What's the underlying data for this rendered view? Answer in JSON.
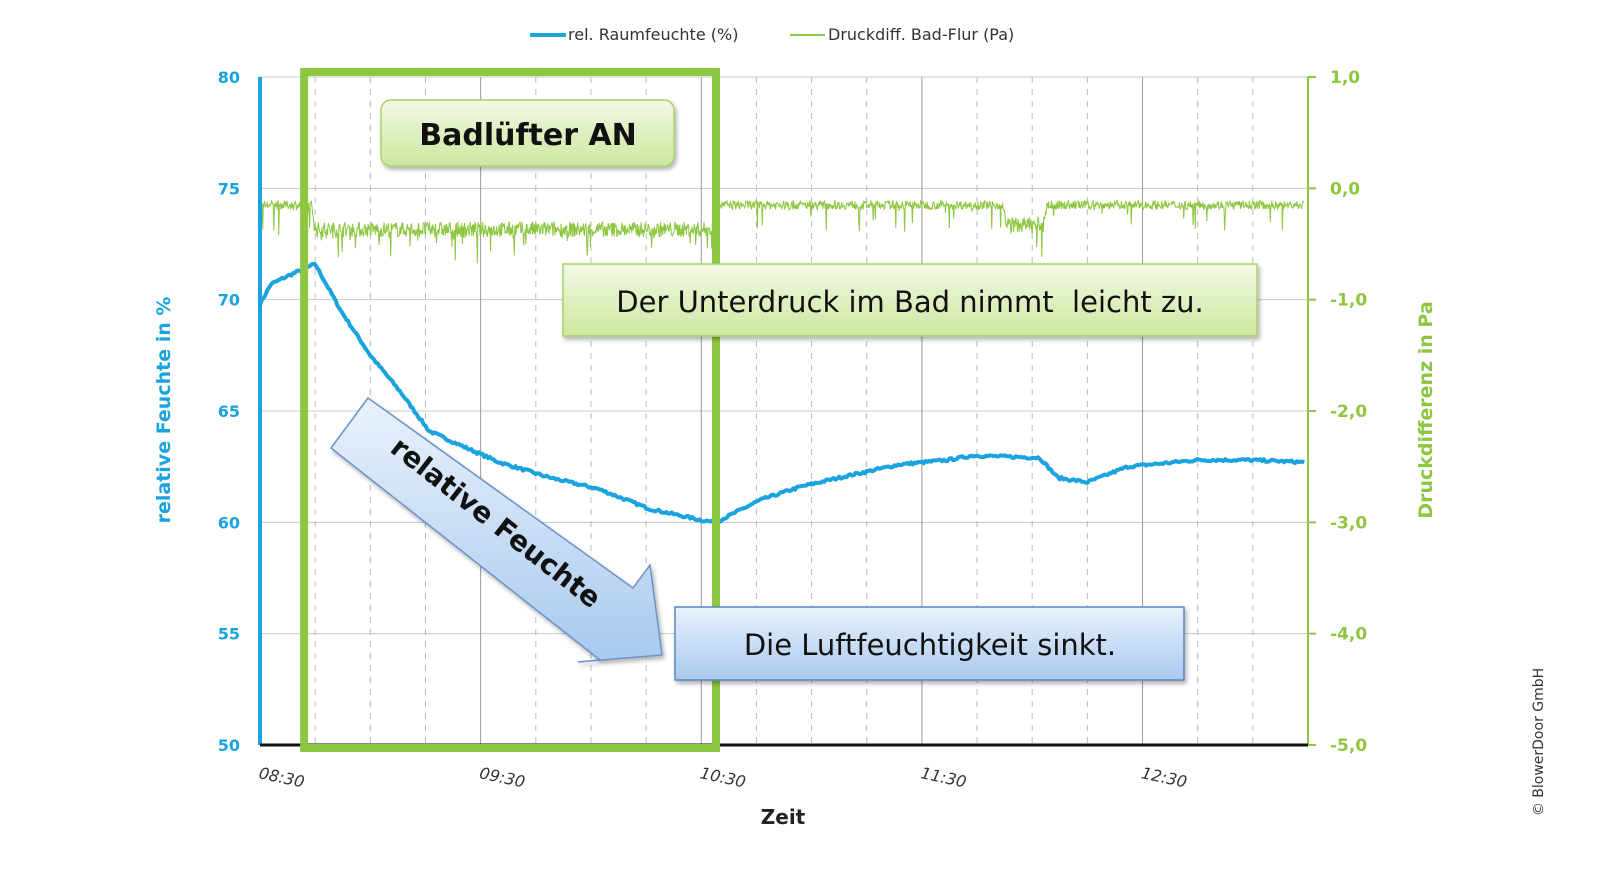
{
  "chart_data": {
    "type": "line",
    "xlabel": "Zeit",
    "ylabel_left": "relative Feuchte in %",
    "ylabel_right": "Druckdifferenz in Pa",
    "x_range": [
      "08:30",
      "13:15"
    ],
    "x_ticks": [
      "08:30",
      "09:30",
      "10:30",
      "11:30",
      "12:30"
    ],
    "ylim_left": [
      50,
      80
    ],
    "yticks_left": [
      "50",
      "55",
      "60",
      "65",
      "70",
      "75",
      "80"
    ],
    "ylim_right": [
      -5.0,
      1.0
    ],
    "yticks_right": [
      "-5,0",
      "-4,0",
      "-3,0",
      "-2,0",
      "-1,0",
      "0,0",
      "1,0"
    ],
    "grid": true,
    "legend_position": "top",
    "colors": {
      "humidity": "#1aa3df",
      "pressure": "#8dc63f"
    },
    "series": [
      {
        "name": "rel. Raumfeuchte (%)",
        "axis": "left",
        "x": [
          "08:30",
          "08:33",
          "08:38",
          "08:45",
          "08:52",
          "09:00",
          "09:08",
          "09:16",
          "09:24",
          "09:35",
          "09:49",
          "10:02",
          "10:16",
          "10:30",
          "10:34",
          "10:46",
          "10:57",
          "11:10",
          "11:24",
          "11:37",
          "11:44",
          "12:02",
          "12:07",
          "12:15",
          "12:26",
          "12:45",
          "12:59",
          "13:14"
        ],
        "y": [
          69.8,
          70.7,
          71.1,
          71.6,
          69.5,
          67.5,
          65.9,
          64.1,
          63.5,
          62.7,
          62.0,
          61.5,
          60.6,
          60.1,
          60.0,
          61.0,
          61.6,
          62.1,
          62.6,
          62.8,
          63.0,
          62.9,
          62.0,
          61.8,
          62.5,
          62.8,
          62.8,
          62.7
        ]
      },
      {
        "name": "Druckdiff. Bad-Flur (Pa)",
        "axis": "right",
        "x": [
          "08:30",
          "08:44",
          "08:45",
          "10:33",
          "10:34",
          "11:52",
          "11:53",
          "12:03",
          "12:04",
          "13:14"
        ],
        "y": [
          -0.15,
          -0.15,
          -0.37,
          -0.37,
          -0.15,
          -0.15,
          -0.33,
          -0.33,
          -0.15,
          -0.15
        ]
      }
    ],
    "annotations": {
      "fan_period": {
        "start": "08:42",
        "end": "10:34",
        "label": "Badlüfter AN"
      },
      "pressure_note": "Der Unterdruck im Bad nimmt  leicht zu.",
      "arrow_label": "relative Feuchte",
      "humidity_note": "Die Luftfeuchtigkeit sinkt."
    },
    "copyright": "© BlowerDoor GmbH"
  }
}
